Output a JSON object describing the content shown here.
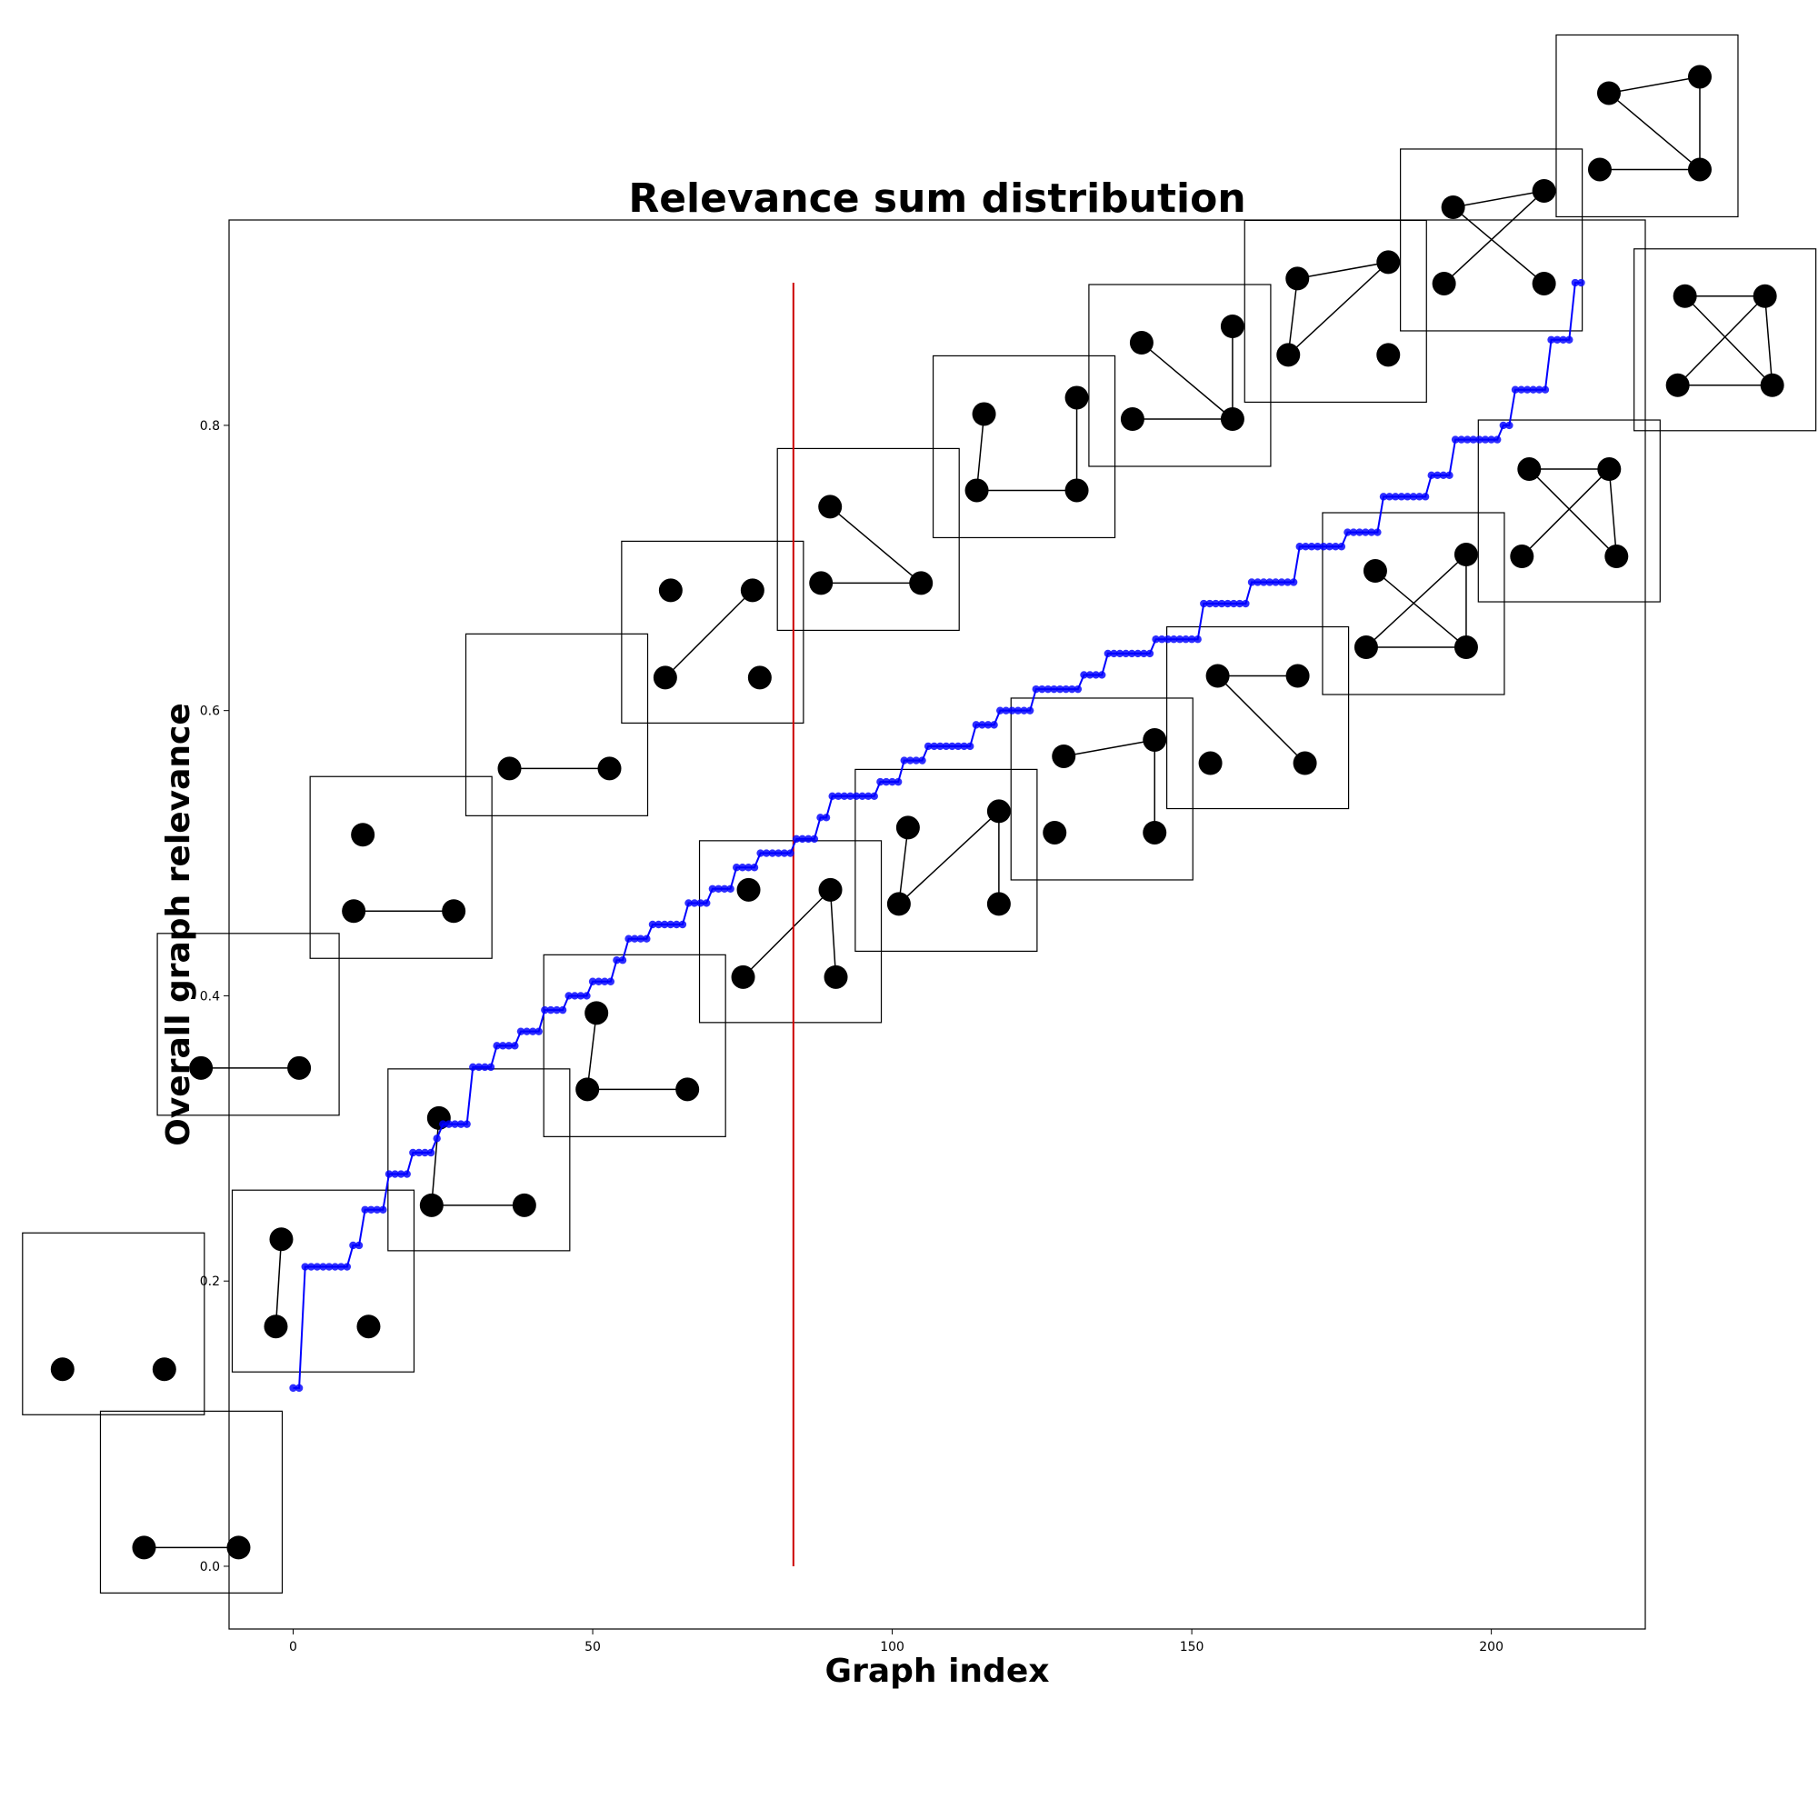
{
  "chart_data": {
    "type": "line",
    "title": "Relevance sum distribution",
    "xlabel": "Graph index",
    "ylabel": "Overall graph relevance",
    "xlim": [
      -10.7,
      225.7
    ],
    "ylim": [
      -0.044,
      0.944
    ],
    "xticks": [
      0,
      50,
      100,
      150,
      200
    ],
    "yticks": [
      0.0,
      0.2,
      0.4,
      0.6,
      0.8
    ],
    "xtick_labels": [
      "0",
      "50",
      "100",
      "150",
      "200"
    ],
    "ytick_labels": [
      "0.0",
      "0.2",
      "0.4",
      "0.6",
      "0.8"
    ],
    "grid": false,
    "legend": "none",
    "series_color": "#0000ff",
    "threshold_color": "#cc0000",
    "threshold_x": 83.5,
    "threshold_y_range": [
      0.0,
      0.9
    ],
    "step_x": [
      0,
      1,
      2,
      9,
      10,
      11,
      12,
      15,
      16,
      19,
      20,
      23,
      24,
      25,
      29,
      30,
      33,
      34,
      37,
      38,
      41,
      42,
      45,
      46,
      49,
      50,
      53,
      54,
      55,
      56,
      59,
      60,
      65,
      66,
      69,
      70,
      73,
      74,
      77,
      78,
      83,
      84,
      87,
      88,
      89,
      90,
      97,
      98,
      101,
      102,
      105,
      106,
      113,
      114,
      117,
      118,
      123,
      124,
      131,
      132,
      135,
      136,
      143,
      144,
      151,
      152,
      159,
      160,
      167,
      168,
      175,
      176,
      181,
      182,
      189,
      190,
      193,
      194,
      201,
      202,
      203,
      204,
      209,
      210,
      213,
      214,
      215
    ],
    "step_y": [
      0.125,
      0.125,
      0.21,
      0.21,
      0.225,
      0.225,
      0.25,
      0.25,
      0.275,
      0.275,
      0.29,
      0.29,
      0.3,
      0.31,
      0.31,
      0.35,
      0.35,
      0.365,
      0.365,
      0.375,
      0.375,
      0.39,
      0.39,
      0.4,
      0.4,
      0.41,
      0.41,
      0.425,
      0.425,
      0.44,
      0.44,
      0.45,
      0.45,
      0.465,
      0.465,
      0.475,
      0.475,
      0.49,
      0.49,
      0.5,
      0.5,
      0.51,
      0.51,
      0.525,
      0.525,
      0.54,
      0.54,
      0.55,
      0.55,
      0.565,
      0.565,
      0.575,
      0.575,
      0.59,
      0.59,
      0.6,
      0.6,
      0.615,
      0.615,
      0.625,
      0.625,
      0.64,
      0.64,
      0.65,
      0.65,
      0.675,
      0.675,
      0.69,
      0.69,
      0.715,
      0.715,
      0.725,
      0.725,
      0.75,
      0.75,
      0.765,
      0.765,
      0.79,
      0.79,
      0.8,
      0.8,
      0.825,
      0.825,
      0.86,
      0.86,
      0.9,
      0.9
    ],
    "thumbnails": [
      {
        "x": -30,
        "y": 0.17,
        "nodes": [
          [
            0.22,
            0.75
          ],
          [
            0.78,
            0.75
          ]
        ],
        "edges": []
      },
      {
        "x": -17,
        "y": 0.045,
        "nodes": [
          [
            0.24,
            0.75
          ],
          [
            0.76,
            0.75
          ]
        ],
        "edges": [
          [
            0,
            1
          ]
        ]
      },
      {
        "x": -7.5,
        "y": 0.38,
        "nodes": [
          [
            0.24,
            0.74
          ],
          [
            0.78,
            0.74
          ]
        ],
        "edges": [
          [
            0,
            1
          ]
        ]
      },
      {
        "x": 5,
        "y": 0.2,
        "nodes": [
          [
            0.27,
            0.27
          ],
          [
            0.24,
            0.75
          ],
          [
            0.75,
            0.75
          ]
        ],
        "edges": [
          [
            0,
            1
          ]
        ]
      },
      {
        "x": 18,
        "y": 0.49,
        "nodes": [
          [
            0.29,
            0.32
          ],
          [
            0.24,
            0.74
          ],
          [
            0.79,
            0.74
          ]
        ],
        "edges": [
          [
            1,
            2
          ]
        ]
      },
      {
        "x": 31,
        "y": 0.285,
        "nodes": [
          [
            0.28,
            0.27
          ],
          [
            0.24,
            0.75
          ],
          [
            0.75,
            0.75
          ]
        ],
        "edges": [
          [
            0,
            1
          ],
          [
            1,
            2
          ]
        ]
      },
      {
        "x": 44,
        "y": 0.59,
        "nodes": [
          [
            0.24,
            0.74
          ],
          [
            0.79,
            0.74
          ]
        ],
        "edges": [
          [
            0,
            1
          ]
        ]
      },
      {
        "x": 57,
        "y": 0.365,
        "nodes": [
          [
            0.29,
            0.32
          ],
          [
            0.24,
            0.74
          ],
          [
            0.79,
            0.74
          ]
        ],
        "edges": [
          [
            0,
            1
          ],
          [
            1,
            2
          ]
        ]
      },
      {
        "x": 70,
        "y": 0.655,
        "nodes": [
          [
            0.27,
            0.27
          ],
          [
            0.72,
            0.27
          ],
          [
            0.24,
            0.75
          ],
          [
            0.76,
            0.75
          ]
        ],
        "edges": [
          [
            1,
            2
          ]
        ]
      },
      {
        "x": 83,
        "y": 0.445,
        "nodes": [
          [
            0.27,
            0.27
          ],
          [
            0.72,
            0.27
          ],
          [
            0.24,
            0.75
          ],
          [
            0.75,
            0.75
          ]
        ],
        "edges": [
          [
            1,
            2
          ],
          [
            1,
            3
          ]
        ]
      },
      {
        "x": 96,
        "y": 0.72,
        "nodes": [
          [
            0.29,
            0.32
          ],
          [
            0.24,
            0.74
          ],
          [
            0.79,
            0.74
          ]
        ],
        "edges": [
          [
            0,
            2
          ],
          [
            1,
            2
          ]
        ]
      },
      {
        "x": 109,
        "y": 0.495,
        "nodes": [
          [
            0.29,
            0.32
          ],
          [
            0.24,
            0.74
          ],
          [
            0.79,
            0.74
          ],
          [
            0.79,
            0.23
          ]
        ],
        "edges": [
          [
            0,
            1
          ],
          [
            1,
            3
          ],
          [
            3,
            2
          ]
        ]
      },
      {
        "x": 122,
        "y": 0.785,
        "nodes": [
          [
            0.28,
            0.32
          ],
          [
            0.24,
            0.74
          ],
          [
            0.79,
            0.74
          ],
          [
            0.79,
            0.23
          ]
        ],
        "edges": [
          [
            0,
            1
          ],
          [
            1,
            2
          ],
          [
            2,
            3
          ]
        ]
      },
      {
        "x": 135,
        "y": 0.545,
        "nodes": [
          [
            0.29,
            0.32
          ],
          [
            0.24,
            0.74
          ],
          [
            0.79,
            0.74
          ],
          [
            0.79,
            0.23
          ]
        ],
        "edges": [
          [
            0,
            3
          ],
          [
            3,
            2
          ]
        ]
      },
      {
        "x": 148,
        "y": 0.835,
        "nodes": [
          [
            0.29,
            0.32
          ],
          [
            0.24,
            0.74
          ],
          [
            0.79,
            0.74
          ],
          [
            0.79,
            0.23
          ]
        ],
        "edges": [
          [
            0,
            2
          ],
          [
            1,
            2
          ],
          [
            2,
            3
          ]
        ]
      },
      {
        "x": 161,
        "y": 0.595,
        "nodes": [
          [
            0.28,
            0.27
          ],
          [
            0.72,
            0.27
          ],
          [
            0.24,
            0.75
          ],
          [
            0.76,
            0.75
          ]
        ],
        "edges": [
          [
            0,
            1
          ],
          [
            0,
            3
          ]
        ]
      },
      {
        "x": 174,
        "y": 0.88,
        "nodes": [
          [
            0.29,
            0.32
          ],
          [
            0.24,
            0.74
          ],
          [
            0.79,
            0.74
          ],
          [
            0.79,
            0.23
          ]
        ],
        "edges": [
          [
            0,
            3
          ],
          [
            1,
            3
          ],
          [
            0,
            1
          ]
        ]
      },
      {
        "x": 187,
        "y": 0.675,
        "nodes": [
          [
            0.29,
            0.32
          ],
          [
            0.24,
            0.74
          ],
          [
            0.79,
            0.74
          ],
          [
            0.79,
            0.23
          ]
        ],
        "edges": [
          [
            0,
            2
          ],
          [
            1,
            2
          ],
          [
            2,
            3
          ],
          [
            1,
            3
          ]
        ]
      },
      {
        "x": 200,
        "y": 0.93,
        "nodes": [
          [
            0.29,
            0.32
          ],
          [
            0.24,
            0.74
          ],
          [
            0.79,
            0.74
          ],
          [
            0.79,
            0.23
          ]
        ],
        "edges": [
          [
            0,
            3
          ],
          [
            0,
            2
          ],
          [
            1,
            3
          ]
        ]
      },
      {
        "x": 213,
        "y": 0.74,
        "nodes": [
          [
            0.28,
            0.27
          ],
          [
            0.72,
            0.27
          ],
          [
            0.24,
            0.75
          ],
          [
            0.76,
            0.75
          ]
        ],
        "edges": [
          [
            0,
            1
          ],
          [
            0,
            3
          ],
          [
            1,
            2
          ],
          [
            1,
            3
          ]
        ]
      },
      {
        "x": 226,
        "y": 1.01,
        "nodes": [
          [
            0.29,
            0.32
          ],
          [
            0.24,
            0.74
          ],
          [
            0.79,
            0.74
          ],
          [
            0.79,
            0.23
          ]
        ],
        "edges": [
          [
            0,
            3
          ],
          [
            1,
            2
          ],
          [
            2,
            3
          ],
          [
            0,
            2
          ]
        ]
      },
      {
        "x": 239,
        "y": 0.86,
        "nodes": [
          [
            0.28,
            0.26
          ],
          [
            0.72,
            0.26
          ],
          [
            0.24,
            0.75
          ],
          [
            0.76,
            0.75
          ]
        ],
        "edges": [
          [
            0,
            1
          ],
          [
            1,
            2
          ],
          [
            1,
            3
          ],
          [
            2,
            3
          ],
          [
            0,
            3
          ]
        ]
      }
    ]
  }
}
